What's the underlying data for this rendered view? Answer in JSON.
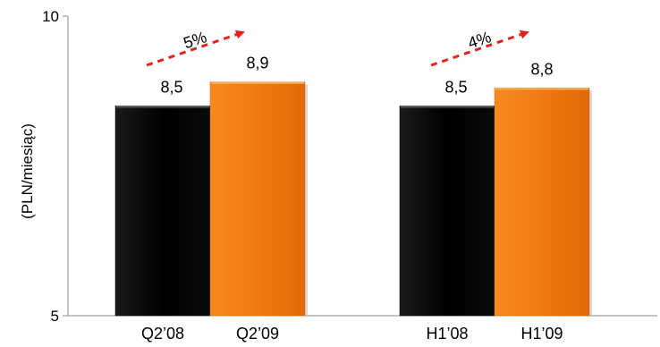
{
  "chart_data": {
    "type": "bar",
    "ylabel": "(PLN/miesiąc)",
    "ylim": [
      5,
      10
    ],
    "yticks": [
      5,
      10
    ],
    "ytick_labels": [
      "5",
      "10"
    ],
    "grid": false,
    "groups": [
      {
        "bars": [
          {
            "category": "Q2’08",
            "value": 8.5,
            "label": "8,5",
            "color": "#000000"
          },
          {
            "category": "Q2’09",
            "value": 8.9,
            "label": "8,9",
            "color": "#f07a10"
          }
        ],
        "growth": "5%"
      },
      {
        "bars": [
          {
            "category": "H1’08",
            "value": 8.5,
            "label": "8,5",
            "color": "#000000"
          },
          {
            "category": "H1’09",
            "value": 8.8,
            "label": "8,8",
            "color": "#f07a10"
          }
        ],
        "growth": "4%"
      }
    ],
    "arrow_color": "#e8201c"
  }
}
